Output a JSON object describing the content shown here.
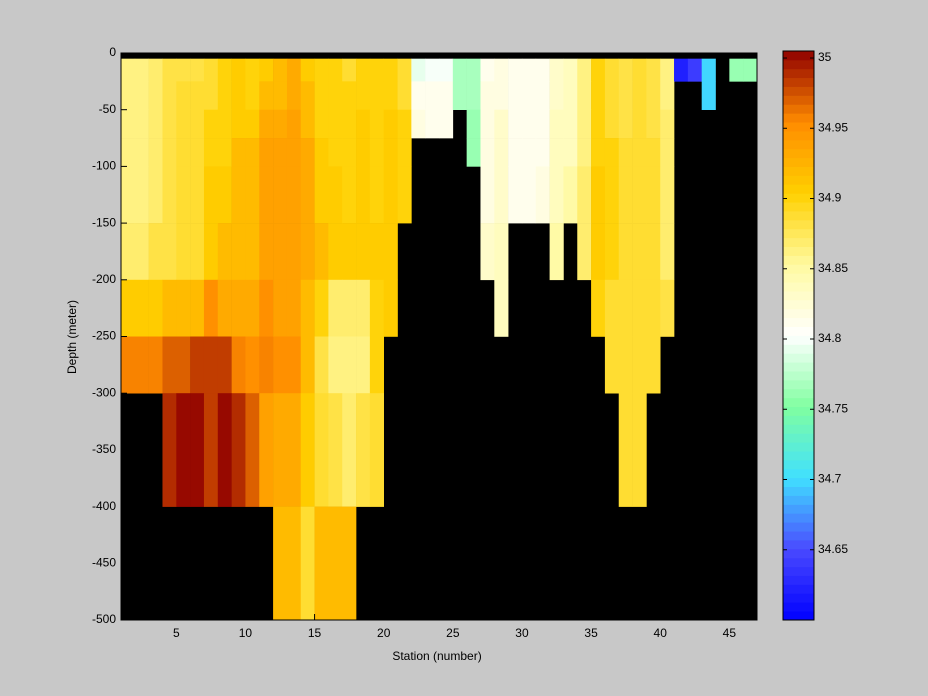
{
  "chart_data": {
    "type": "heatmap",
    "x_label": "Station (number)",
    "y_label": "Depth (meter)",
    "x_edges": [
      1,
      2,
      3,
      4,
      5,
      6,
      7,
      8,
      9,
      10,
      11,
      12,
      13,
      14,
      15,
      16,
      17,
      18,
      19,
      20,
      21,
      22,
      23,
      24,
      25,
      26,
      27,
      28,
      29,
      30,
      31,
      32,
      33,
      34,
      35,
      36,
      37,
      38,
      39,
      40,
      41,
      42,
      43,
      44,
      45,
      46,
      47
    ],
    "y_edges": [
      -5,
      -25,
      -50,
      -75,
      -100,
      -150,
      -200,
      -250,
      -300,
      -400,
      -500
    ],
    "z": [
      [
        34.86,
        34.86,
        34.87,
        34.88,
        34.88,
        34.88,
        34.89,
        34.9,
        34.91,
        34.9,
        34.91,
        34.92,
        34.93,
        34.91,
        34.9,
        34.9,
        34.89,
        34.9,
        34.9,
        34.9,
        34.89,
        34.79,
        34.8,
        34.8,
        34.77,
        34.77,
        34.81,
        34.82,
        34.81,
        34.81,
        34.81,
        34.83,
        34.84,
        34.86,
        34.9,
        34.89,
        34.88,
        34.89,
        34.88,
        34.86,
        34.62,
        34.64,
        34.7,
        null,
        34.76,
        34.76
      ],
      [
        34.86,
        34.86,
        34.87,
        34.88,
        34.89,
        34.89,
        34.89,
        34.9,
        34.91,
        34.9,
        34.92,
        34.92,
        34.93,
        34.92,
        34.9,
        34.9,
        34.9,
        34.9,
        34.9,
        34.9,
        34.89,
        34.81,
        34.81,
        34.81,
        34.77,
        34.77,
        34.82,
        34.82,
        34.81,
        34.81,
        34.81,
        34.83,
        34.84,
        34.86,
        34.9,
        34.89,
        34.88,
        34.89,
        34.88,
        34.86,
        null,
        null,
        34.7,
        null,
        null,
        null
      ],
      [
        34.86,
        34.86,
        34.87,
        34.88,
        34.89,
        34.89,
        34.9,
        34.9,
        34.91,
        34.91,
        34.93,
        34.93,
        34.94,
        34.92,
        34.9,
        34.9,
        34.9,
        34.91,
        34.9,
        34.91,
        34.9,
        34.82,
        34.81,
        34.81,
        null,
        34.76,
        34.82,
        34.83,
        34.81,
        34.81,
        34.81,
        34.84,
        34.84,
        34.86,
        34.9,
        34.89,
        34.88,
        34.89,
        34.88,
        34.87,
        null,
        null,
        null,
        null,
        null,
        null
      ],
      [
        34.86,
        34.86,
        34.87,
        34.88,
        34.89,
        34.89,
        34.9,
        34.9,
        34.92,
        34.92,
        34.94,
        34.94,
        34.94,
        34.93,
        34.91,
        34.9,
        34.9,
        34.91,
        34.9,
        34.91,
        34.9,
        null,
        null,
        null,
        null,
        34.76,
        34.82,
        34.83,
        34.81,
        34.81,
        34.81,
        34.84,
        34.84,
        34.86,
        34.9,
        34.9,
        34.89,
        34.89,
        34.89,
        34.87,
        null,
        null,
        null,
        null,
        null,
        null
      ],
      [
        34.86,
        34.86,
        34.87,
        34.88,
        34.89,
        34.89,
        34.91,
        34.91,
        34.92,
        34.92,
        34.94,
        34.94,
        34.94,
        34.93,
        34.91,
        34.91,
        34.9,
        34.91,
        34.9,
        34.91,
        34.9,
        null,
        null,
        null,
        null,
        null,
        34.82,
        34.83,
        34.81,
        34.81,
        34.82,
        34.84,
        34.85,
        34.87,
        34.91,
        34.9,
        34.89,
        34.89,
        34.89,
        34.87,
        null,
        null,
        null,
        null,
        null,
        null
      ],
      [
        34.87,
        34.87,
        34.88,
        34.88,
        34.89,
        34.89,
        34.91,
        34.92,
        34.92,
        34.92,
        34.94,
        34.94,
        34.94,
        34.93,
        34.92,
        34.91,
        34.91,
        34.91,
        34.91,
        34.91,
        null,
        null,
        null,
        null,
        null,
        null,
        34.83,
        34.84,
        null,
        null,
        null,
        34.85,
        null,
        34.87,
        34.91,
        34.9,
        34.89,
        34.89,
        34.89,
        34.87,
        null,
        null,
        null,
        null,
        null,
        null
      ],
      [
        34.91,
        34.91,
        34.91,
        34.92,
        34.92,
        34.92,
        34.95,
        34.93,
        34.93,
        34.93,
        34.95,
        34.94,
        34.94,
        34.92,
        34.9,
        34.87,
        34.87,
        34.87,
        34.9,
        34.91,
        null,
        null,
        null,
        null,
        null,
        null,
        null,
        34.84,
        null,
        null,
        null,
        null,
        null,
        null,
        34.9,
        34.89,
        34.89,
        34.89,
        34.89,
        34.88,
        null,
        null,
        null,
        null,
        null,
        null
      ],
      [
        34.96,
        34.96,
        34.96,
        34.97,
        34.97,
        34.98,
        34.98,
        34.98,
        34.96,
        34.95,
        34.96,
        34.95,
        34.95,
        34.92,
        34.88,
        34.86,
        34.86,
        34.86,
        34.9,
        null,
        null,
        null,
        null,
        null,
        null,
        null,
        null,
        null,
        null,
        null,
        null,
        null,
        null,
        null,
        null,
        34.89,
        34.89,
        34.89,
        34.89,
        null,
        null,
        null,
        null,
        null,
        null,
        null
      ],
      [
        null,
        null,
        null,
        34.99,
        35.0,
        35.0,
        34.98,
        35.0,
        34.99,
        34.97,
        34.94,
        34.93,
        34.93,
        34.91,
        34.89,
        34.88,
        34.87,
        34.88,
        34.89,
        null,
        null,
        null,
        null,
        null,
        null,
        null,
        null,
        null,
        null,
        null,
        null,
        null,
        null,
        null,
        null,
        null,
        34.89,
        34.89,
        null,
        null,
        null,
        null,
        null,
        null,
        null,
        null
      ],
      [
        null,
        null,
        null,
        null,
        null,
        null,
        null,
        null,
        null,
        null,
        null,
        34.92,
        34.92,
        34.89,
        34.92,
        34.92,
        34.92,
        null,
        null,
        null,
        null,
        null,
        null,
        null,
        null,
        null,
        null,
        null,
        null,
        null,
        null,
        null,
        null,
        null,
        null,
        null,
        null,
        null,
        null,
        null,
        null,
        null,
        null,
        null,
        null,
        null
      ]
    ],
    "xlim": [
      1,
      47
    ],
    "ylim": [
      -500,
      0
    ],
    "xticks": [
      5,
      10,
      15,
      20,
      25,
      30,
      35,
      40,
      45
    ],
    "yticks": [
      -500,
      -450,
      -400,
      -350,
      -300,
      -250,
      -200,
      -150,
      -100,
      -50,
      0
    ],
    "clim": [
      34.6,
      35.005
    ],
    "colorbar_ticks": [
      34.65,
      34.7,
      34.75,
      34.8,
      34.85,
      34.9,
      34.95,
      35
    ],
    "colormap": [
      "#0000ff",
      "#4a4aff",
      "#40e0ff",
      "#80ffa0",
      "#ffffff",
      "#fffaa0",
      "#ffd000",
      "#ff8c00",
      "#900000"
    ],
    "background": "#000000"
  }
}
